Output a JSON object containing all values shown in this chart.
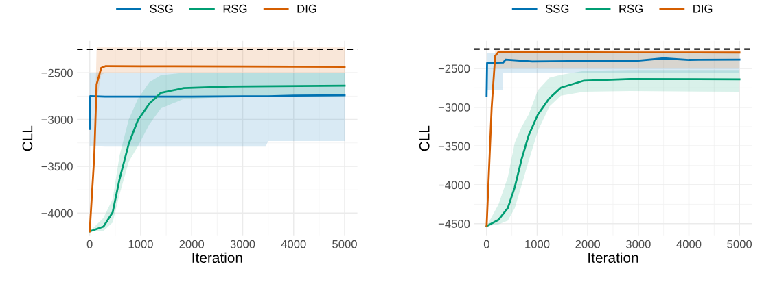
{
  "chart_data": [
    {
      "type": "line",
      "xlabel": "Iteration",
      "ylabel": "CLL",
      "xlim": [
        -250,
        5250
      ],
      "xticks": [
        0,
        1000,
        2000,
        3000,
        4000,
        5000
      ],
      "ylim": [
        -4245,
        -2160
      ],
      "yticks": [
        -4000,
        -3500,
        -3000,
        -2500
      ],
      "grid": true,
      "legend": "top",
      "line_style": "solid",
      "marker": "none",
      "ref_lines": [
        {
          "axis": "y",
          "value": -2250,
          "color": "#000000",
          "line_style": "dashed"
        }
      ],
      "series": [
        {
          "name": "SSG",
          "color": "#0072b2",
          "x": [
            0,
            10,
            300,
            1000,
            2000,
            3000,
            3450,
            3500,
            4000,
            5000
          ],
          "values": [
            -3100,
            -2750,
            -2755,
            -2755,
            -2755,
            -2752,
            -2752,
            -2752,
            -2745,
            -2740
          ],
          "lower": [
            -3280,
            -3280,
            -3290,
            -3290,
            -3290,
            -3290,
            -3290,
            -3230,
            -3230,
            -3230
          ],
          "upper": [
            -2500,
            -2500,
            -2500,
            -2500,
            -2500,
            -2500,
            -2500,
            -2500,
            -2500,
            -2500
          ]
        },
        {
          "name": "RSG",
          "color": "#009e73",
          "x": [
            0,
            270,
            450,
            585,
            766,
            946,
            1171,
            1397,
            1847,
            2748,
            5000
          ],
          "values": [
            -4195,
            -4144,
            -3992,
            -3638,
            -3259,
            -3006,
            -2829,
            -2715,
            -2664,
            -2647,
            -2639
          ],
          "lower": [
            -4195,
            -4190,
            -4100,
            -3800,
            -3450,
            -3284,
            -3050,
            -2880,
            -2780,
            -2760,
            -2750
          ],
          "upper": [
            -4195,
            -4050,
            -3850,
            -3385,
            -3000,
            -2778,
            -2600,
            -2525,
            -2500,
            -2500,
            -2500
          ]
        },
        {
          "name": "DIG",
          "color": "#d55e00",
          "x": [
            0,
            90,
            135,
            225,
            315,
            1000,
            3000,
            5000
          ],
          "values": [
            -4195,
            -3385,
            -2626,
            -2449,
            -2429,
            -2432,
            -2433,
            -2437
          ],
          "lower": [
            -4195,
            -3450,
            -2800,
            -2520,
            -2500,
            -2500,
            -2500,
            -2500
          ],
          "upper": [
            -4195,
            -3300,
            -2230,
            -2230,
            -2230,
            -2230,
            -2230,
            -2230
          ]
        }
      ]
    },
    {
      "type": "line",
      "xlabel": "Iteration",
      "ylabel": "CLL",
      "xlim": [
        -250,
        5250
      ],
      "xticks": [
        0,
        1000,
        2000,
        3000,
        4000,
        5000
      ],
      "ylim": [
        -4660,
        -2145
      ],
      "yticks": [
        -4500,
        -4000,
        -3500,
        -3000,
        -2500
      ],
      "grid": true,
      "legend": "top",
      "line_style": "solid",
      "marker": "none",
      "ref_lines": [
        {
          "axis": "y",
          "value": -2250,
          "color": "#000000",
          "line_style": "dashed"
        }
      ],
      "series": [
        {
          "name": "SSG",
          "color": "#0072b2",
          "x": [
            0,
            9,
            320,
            329,
            374,
            900,
            2000,
            3000,
            3500,
            4000,
            5000
          ],
          "values": [
            -2852,
            -2431,
            -2425,
            -2425,
            -2386,
            -2410,
            -2405,
            -2400,
            -2370,
            -2390,
            -2386
          ],
          "lower": [
            -2852,
            -2780,
            -2780,
            -2560,
            -2560,
            -2560,
            -2560,
            -2560,
            -2560,
            -2560,
            -2560
          ],
          "upper": [
            -2852,
            -2300,
            -2300,
            -2290,
            -2290,
            -2290,
            -2290,
            -2290,
            -2290,
            -2290,
            -2290
          ]
        },
        {
          "name": "RSG",
          "color": "#009e73",
          "x": [
            0,
            237,
            420,
            557,
            694,
            831,
            1014,
            1242,
            1470,
            1927,
            2840,
            5000
          ],
          "values": [
            -4533,
            -4449,
            -4298,
            -4029,
            -3666,
            -3364,
            -3093,
            -2883,
            -2747,
            -2657,
            -2635,
            -2640
          ],
          "lower": [
            -4533,
            -4509,
            -4460,
            -4300,
            -4000,
            -3696,
            -3304,
            -2990,
            -2850,
            -2800,
            -2792,
            -2800
          ],
          "upper": [
            -4533,
            -4250,
            -3900,
            -3455,
            -3250,
            -3093,
            -2780,
            -2620,
            -2581,
            -2530,
            -2521,
            -2521
          ]
        },
        {
          "name": "DIG",
          "color": "#d55e00",
          "x": [
            0,
            100,
            169,
            237,
            1000,
            3000,
            5000
          ],
          "values": [
            -4533,
            -3003,
            -2340,
            -2286,
            -2290,
            -2293,
            -2295
          ],
          "lower": [
            -4533,
            -3100,
            -2500,
            -2500,
            -2500,
            -2500,
            -2500
          ],
          "upper": [
            -4533,
            -2950,
            -2265,
            -2265,
            -2265,
            -2265,
            -2265
          ]
        }
      ]
    }
  ]
}
